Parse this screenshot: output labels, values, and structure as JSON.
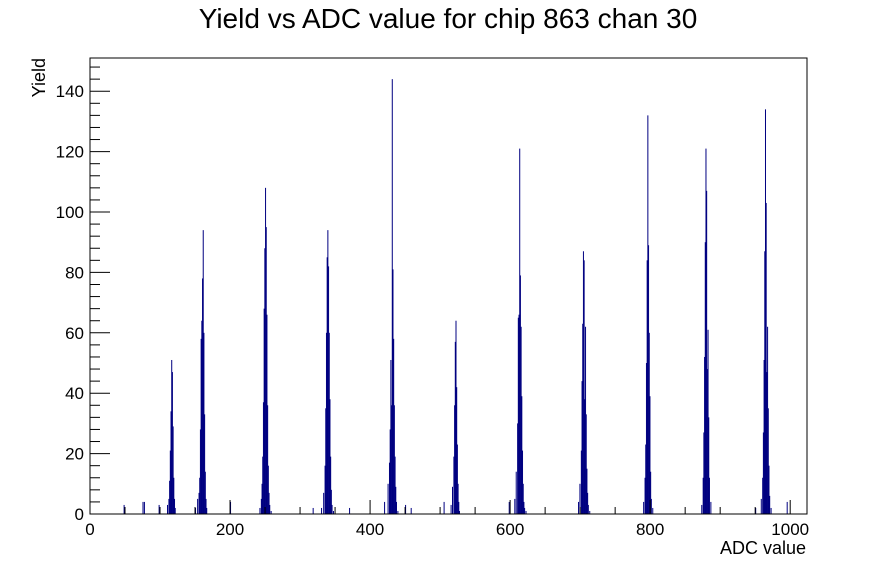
{
  "chart_data": {
    "type": "bar",
    "title": "Yield vs ADC value for chip 863 chan 30",
    "xlabel": "ADC value",
    "ylabel": "Yield",
    "xlim": [
      0,
      1024
    ],
    "ylim": [
      0,
      151
    ],
    "grid": false,
    "legend": "none",
    "line_color": "#000080",
    "x_ticks": [
      {
        "value": 0,
        "label": "0"
      },
      {
        "value": 200,
        "label": "200"
      },
      {
        "value": 400,
        "label": "400"
      },
      {
        "value": 600,
        "label": "600"
      },
      {
        "value": 800,
        "label": "800"
      },
      {
        "value": 1000,
        "label": "1000"
      }
    ],
    "y_ticks": [
      {
        "value": 0,
        "label": "0"
      },
      {
        "value": 20,
        "label": "20"
      },
      {
        "value": 40,
        "label": "40"
      },
      {
        "value": 60,
        "label": "60"
      },
      {
        "value": 80,
        "label": "80"
      },
      {
        "value": 100,
        "label": "100"
      },
      {
        "value": 120,
        "label": "120"
      },
      {
        "value": 140,
        "label": "140"
      }
    ],
    "x_minor_step": 50,
    "y_minor_step": 4,
    "bins": {
      "x": [
        48,
        75,
        77,
        98,
        110,
        112,
        113,
        114,
        115,
        116,
        117,
        118,
        119,
        120,
        121,
        150,
        153,
        155,
        156,
        157,
        158,
        159,
        160,
        161,
        162,
        163,
        164,
        165,
        166,
        200,
        242,
        244,
        245,
        246,
        247,
        248,
        249,
        250,
        251,
        252,
        253,
        254,
        255,
        256,
        258,
        318,
        330,
        333,
        335,
        336,
        337,
        338,
        339,
        340,
        341,
        342,
        343,
        344,
        345,
        347,
        370,
        420,
        425,
        427,
        428,
        429,
        430,
        431,
        432,
        433,
        434,
        435,
        436,
        437,
        439,
        450,
        458,
        505,
        515,
        517,
        519,
        520,
        521,
        522,
        523,
        524,
        525,
        526,
        527,
        598,
        606,
        608,
        610,
        611,
        612,
        613,
        614,
        615,
        616,
        617,
        618,
        619,
        620,
        622,
        697,
        699,
        701,
        702,
        703,
        704,
        705,
        706,
        707,
        708,
        709,
        710,
        711,
        713,
        790,
        792,
        793,
        794,
        795,
        796,
        797,
        798,
        799,
        800,
        801,
        803,
        873,
        875,
        876,
        877,
        878,
        879,
        880,
        881,
        882,
        883,
        884,
        886,
        950,
        958,
        960,
        961,
        962,
        963,
        964,
        965,
        966,
        967,
        968,
        969,
        970,
        972,
        995
      ],
      "y": [
        3,
        4,
        4,
        3,
        3,
        5,
        11,
        21,
        34,
        51,
        47,
        29,
        12,
        5,
        2,
        2,
        5,
        7,
        12,
        28,
        58,
        64,
        78,
        94,
        60,
        33,
        14,
        5,
        2,
        4,
        2,
        5,
        10,
        19,
        37,
        68,
        88,
        108,
        95,
        66,
        36,
        16,
        7,
        3,
        1,
        2,
        2,
        7,
        16,
        35,
        60,
        85,
        94,
        82,
        60,
        38,
        19,
        8,
        3,
        1,
        2,
        4,
        10,
        17,
        28,
        51,
        36,
        144,
        81,
        58,
        36,
        19,
        9,
        4,
        1,
        3,
        2,
        4,
        3,
        9,
        19,
        36,
        57,
        64,
        42,
        23,
        10,
        4,
        1,
        4,
        5,
        14,
        30,
        65,
        66,
        121,
        79,
        62,
        39,
        21,
        10,
        4,
        2,
        1,
        4,
        10,
        21,
        44,
        63,
        87,
        84,
        38,
        62,
        33,
        15,
        7,
        3,
        1,
        4,
        12,
        23,
        50,
        84,
        132,
        89,
        60,
        39,
        14,
        5,
        2,
        3,
        12,
        27,
        52,
        90,
        121,
        107,
        48,
        61,
        32,
        12,
        4,
        2,
        5,
        12,
        27,
        51,
        87,
        134,
        103,
        47,
        62,
        35,
        16,
        6,
        2,
        4
      ]
    }
  }
}
